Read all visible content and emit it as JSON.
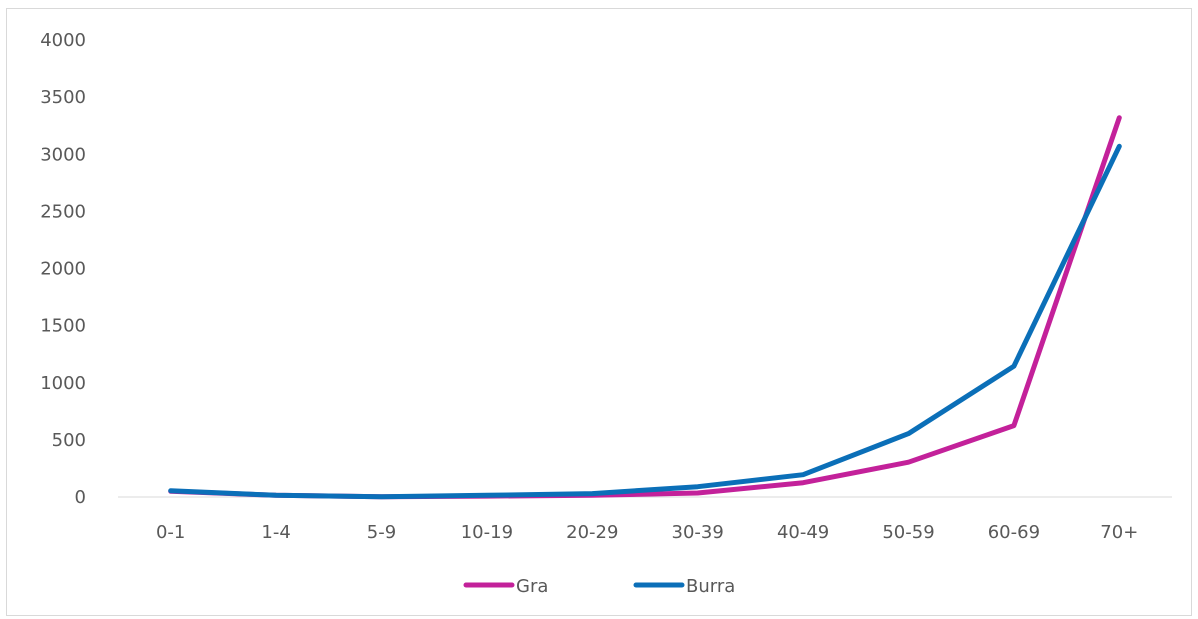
{
  "chart_data": {
    "type": "line",
    "title": "",
    "xlabel": "",
    "ylabel": "",
    "categories": [
      "0-1",
      "1-4",
      "5-9",
      "10-19",
      "20-29",
      "30-39",
      "40-49",
      "50-59",
      "60-69",
      "70+"
    ],
    "ylim": [
      0,
      4000
    ],
    "yticks": [
      0,
      500,
      1000,
      1500,
      2000,
      2500,
      3000,
      3500,
      4000
    ],
    "grid": false,
    "legend": "bottom",
    "series": [
      {
        "name": "Gra",
        "color": "#c3219a",
        "values": [
          50,
          15,
          2,
          8,
          15,
          35,
          125,
          305,
          625,
          3320
        ]
      },
      {
        "name": "Burra",
        "color": "#0b6fb8",
        "values": [
          55,
          15,
          2,
          15,
          30,
          90,
          195,
          555,
          1145,
          3070
        ]
      }
    ]
  }
}
